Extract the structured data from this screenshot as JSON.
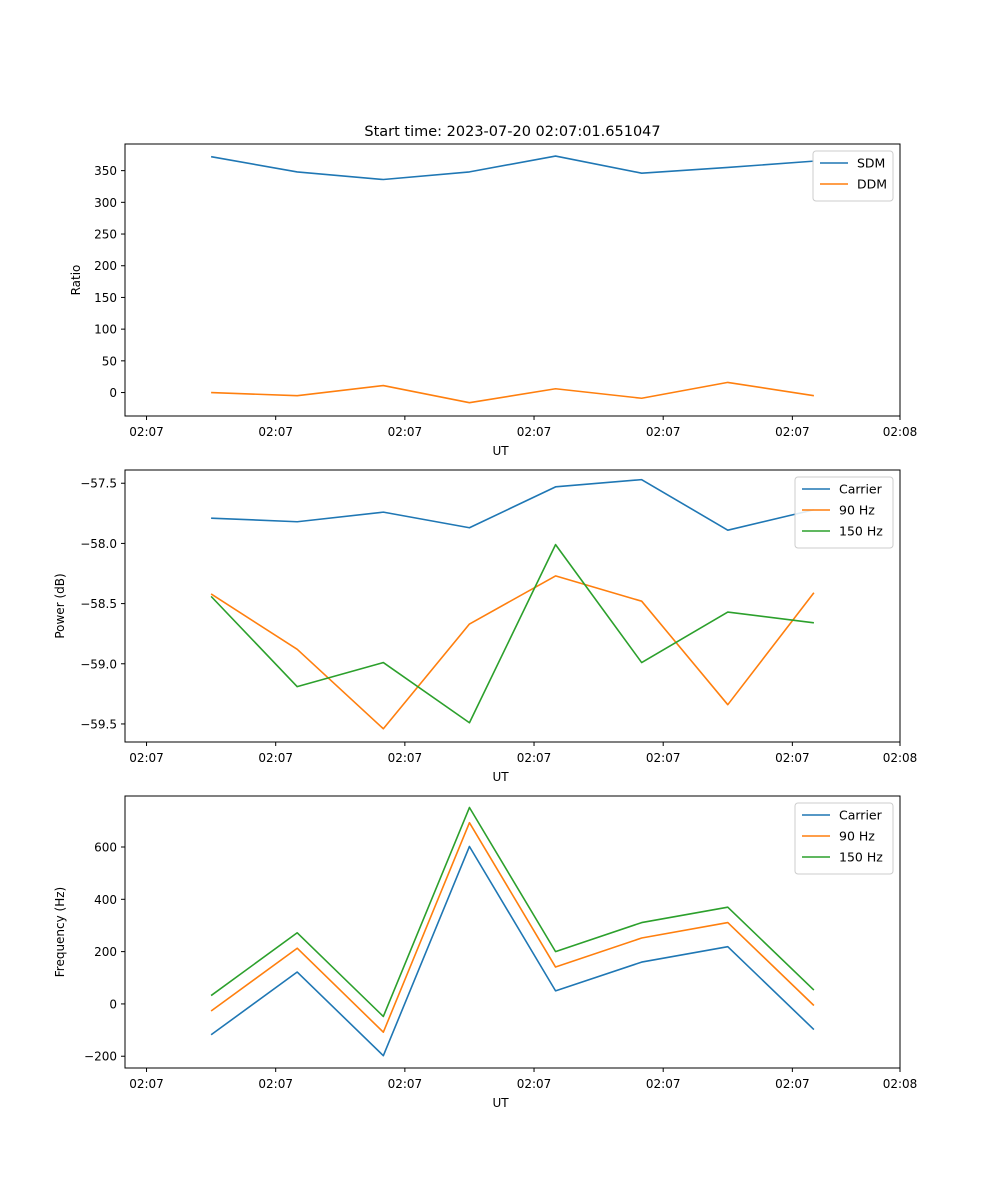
{
  "chart_data": [
    {
      "type": "line",
      "title": "Start time: 2023-07-20 02:07:01.651047",
      "xlabel": "UT",
      "ylabel": "Ratio",
      "xlim": [
        0,
        18
      ],
      "ylim": [
        -37,
        392
      ],
      "x_ticks": [
        0.5,
        3.5,
        6.5,
        9.5,
        12.5,
        15.5,
        18
      ],
      "x_tick_labels": [
        "02:07",
        "02:07",
        "02:07",
        "02:07",
        "02:07",
        "02:07",
        "02:08"
      ],
      "y_ticks": [
        0,
        50,
        100,
        150,
        200,
        250,
        300,
        350
      ],
      "y_tick_labels": [
        "0",
        "50",
        "100",
        "150",
        "200",
        "250",
        "300",
        "350"
      ],
      "legend": "top-right",
      "x": [
        2,
        4,
        6,
        8,
        10,
        12,
        14,
        16
      ],
      "series": [
        {
          "name": "SDM",
          "color": "#1f77b4",
          "values": [
            372,
            348,
            336,
            348,
            373,
            346,
            355,
            365
          ]
        },
        {
          "name": "DDM",
          "color": "#ff7f0e",
          "values": [
            0,
            -5,
            11,
            -16,
            6,
            -9,
            16,
            -5
          ]
        }
      ]
    },
    {
      "type": "line",
      "title": "",
      "xlabel": "UT",
      "ylabel": "Power (dB)",
      "xlim": [
        0,
        18
      ],
      "ylim": [
        -59.65,
        -57.39
      ],
      "x_ticks": [
        0.5,
        3.5,
        6.5,
        9.5,
        12.5,
        15.5,
        18
      ],
      "x_tick_labels": [
        "02:07",
        "02:07",
        "02:07",
        "02:07",
        "02:07",
        "02:07",
        "02:08"
      ],
      "y_ticks": [
        -57.5,
        -58.0,
        -58.5,
        -59.0,
        -59.5
      ],
      "y_tick_labels": [
        "−57.5",
        "−58.0",
        "−58.5",
        "−59.0",
        "−59.5"
      ],
      "legend": "top-right",
      "x": [
        2,
        4,
        6,
        8,
        10,
        12,
        14,
        16
      ],
      "series": [
        {
          "name": "Carrier",
          "color": "#1f77b4",
          "values": [
            -57.79,
            -57.82,
            -57.74,
            -57.87,
            -57.53,
            -57.47,
            -57.89,
            -57.72
          ]
        },
        {
          "name": "90 Hz",
          "color": "#ff7f0e",
          "values": [
            -58.42,
            -58.88,
            -59.54,
            -58.67,
            -58.27,
            -58.48,
            -59.34,
            -58.41
          ]
        },
        {
          "name": "150 Hz",
          "color": "#2ca02c",
          "values": [
            -58.44,
            -59.19,
            -58.99,
            -59.49,
            -58.01,
            -58.99,
            -58.57,
            -58.66
          ]
        }
      ]
    },
    {
      "type": "line",
      "title": "",
      "xlabel": "UT",
      "ylabel": "Frequency (Hz)",
      "xlim": [
        0,
        18
      ],
      "ylim": [
        -245,
        795
      ],
      "x_ticks": [
        0.5,
        3.5,
        6.5,
        9.5,
        12.5,
        15.5,
        18
      ],
      "x_tick_labels": [
        "02:07",
        "02:07",
        "02:07",
        "02:07",
        "02:07",
        "02:07",
        "02:08"
      ],
      "y_ticks": [
        -200,
        0,
        200,
        400,
        600
      ],
      "y_tick_labels": [
        "−200",
        "0",
        "200",
        "400",
        "600"
      ],
      "legend": "top-right",
      "x": [
        2,
        4,
        6,
        8,
        10,
        12,
        14,
        16
      ],
      "series": [
        {
          "name": "Carrier",
          "color": "#1f77b4",
          "values": [
            -118,
            122,
            -198,
            602,
            50,
            160,
            219,
            -98
          ]
        },
        {
          "name": "90 Hz",
          "color": "#ff7f0e",
          "values": [
            -27,
            213,
            -108,
            693,
            141,
            252,
            311,
            -6
          ]
        },
        {
          "name": "150 Hz",
          "color": "#2ca02c",
          "values": [
            32,
            272,
            -48,
            751,
            200,
            311,
            370,
            53
          ]
        }
      ]
    }
  ]
}
